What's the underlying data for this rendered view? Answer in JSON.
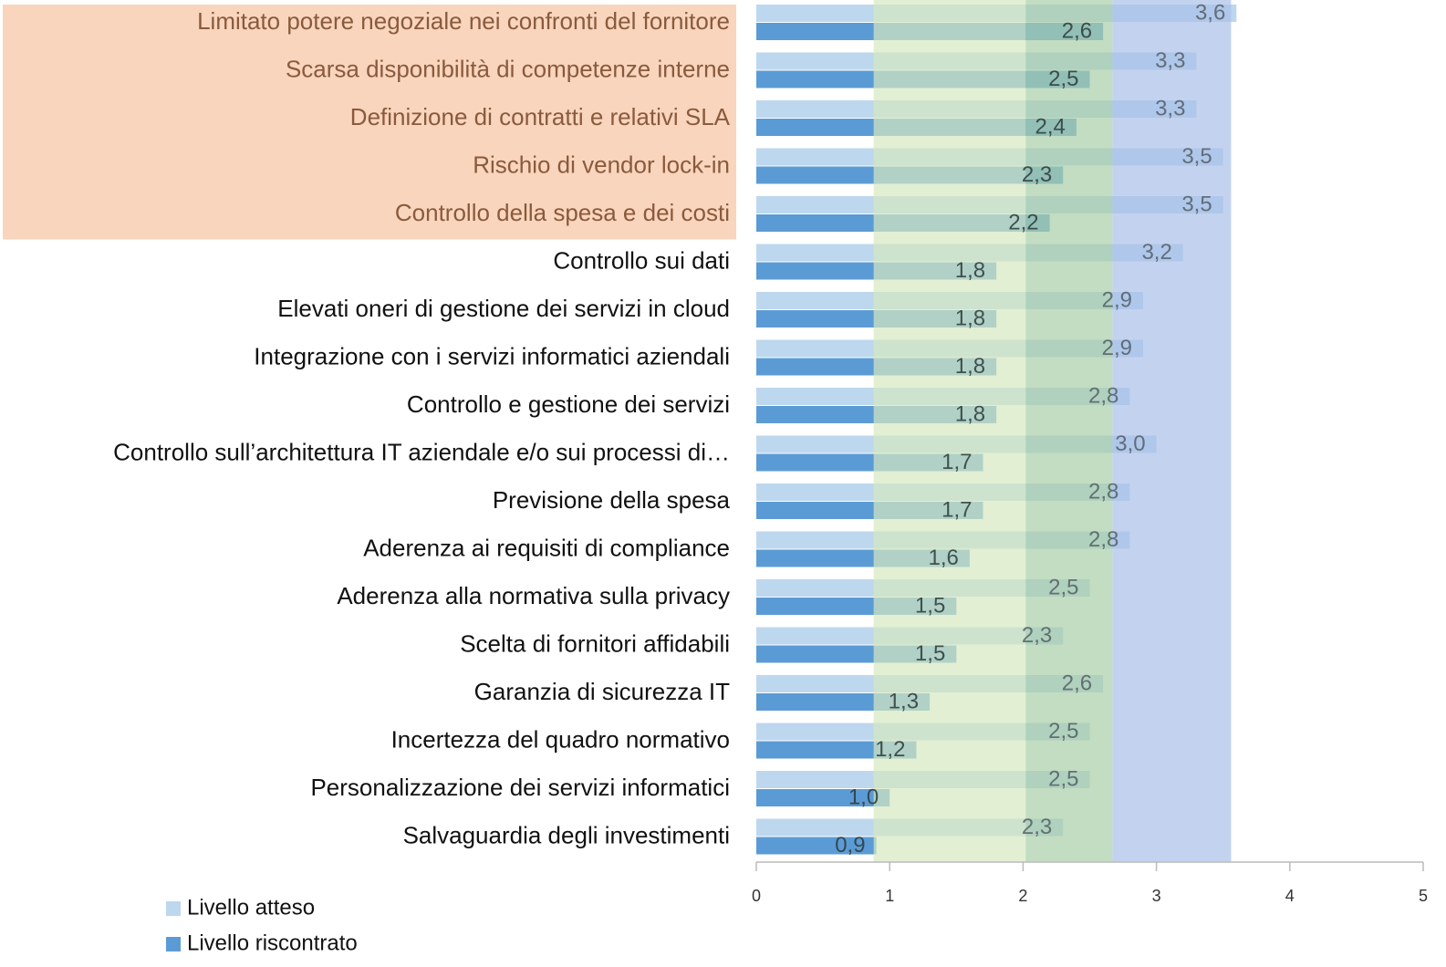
{
  "chart_data": {
    "type": "hbar",
    "categories": [
      "Limitato potere negoziale nei confronti del fornitore",
      "Scarsa disponibilità di competenze interne",
      "Definizione di contratti e relativi SLA",
      "Rischio di vendor lock-in",
      "Controllo della spesa e dei costi",
      "Controllo sui dati",
      "Elevati oneri di gestione dei servizi in cloud",
      "Integrazione con i servizi informatici aziendali",
      "Controllo e gestione dei servizi",
      "Controllo sull’architettura IT aziendale e/o sui processi di…",
      "Previsione della spesa",
      "Aderenza ai requisiti di compliance",
      "Aderenza alla normativa sulla privacy",
      "Scelta di fornitori affidabili",
      "Garanzia di sicurezza IT",
      "Incertezza del quadro normativo",
      "Personalizzazione dei servizi informatici",
      "Salvaguardia degli investimenti"
    ],
    "series": [
      {
        "name": "Livello atteso",
        "color": "#bdd7ee",
        "values": [
          3.6,
          3.3,
          3.3,
          3.5,
          3.5,
          3.2,
          2.9,
          2.9,
          2.8,
          3.0,
          2.8,
          2.8,
          2.5,
          2.3,
          2.6,
          2.5,
          2.5,
          2.3
        ],
        "value_labels": [
          "3,6",
          "3,3",
          "3,3",
          "3,5",
          "3,5",
          "3,2",
          "2,9",
          "2,9",
          "2,8",
          "3,0",
          "2,8",
          "2,8",
          "2,5",
          "2,3",
          "2,6",
          "2,5",
          "2,5",
          "2,3"
        ]
      },
      {
        "name": "Livello riscontrato",
        "color": "#5b9bd5",
        "values": [
          2.6,
          2.5,
          2.4,
          2.3,
          2.2,
          1.8,
          1.8,
          1.8,
          1.8,
          1.7,
          1.7,
          1.6,
          1.5,
          1.5,
          1.3,
          1.2,
          1.0,
          0.9
        ],
        "value_labels": [
          "2,6",
          "2,5",
          "2,4",
          "2,3",
          "2,2",
          "1,8",
          "1,8",
          "1,8",
          "1,8",
          "1,7",
          "1,7",
          "1,6",
          "1,5",
          "1,5",
          "1,3",
          "1,2",
          "1,0",
          "0,9"
        ]
      }
    ],
    "bands": [
      {
        "range": [
          0.88,
          2.02
        ],
        "color": "#d5e8c0"
      },
      {
        "range": [
          2.02,
          2.67
        ],
        "color": "#a9cfa8"
      },
      {
        "range": [
          2.67,
          3.56
        ],
        "color": "#aac0e8"
      }
    ],
    "highlighted": [
      0,
      1,
      2,
      3,
      4
    ],
    "highlight_color": "#f9d5bd",
    "xlim": [
      0,
      5
    ],
    "xticks": [
      0,
      1,
      2,
      3,
      4,
      5
    ]
  }
}
